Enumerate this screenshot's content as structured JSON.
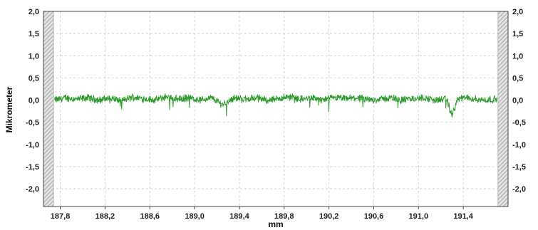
{
  "chart_data": {
    "type": "line",
    "title": "",
    "xlabel": "mm",
    "ylabel": "Mikrometer",
    "xlim": [
      187.65,
      191.8
    ],
    "ylim": [
      -2.4,
      2.0
    ],
    "x_ticks": [
      187.8,
      188.2,
      188.6,
      189.0,
      189.4,
      189.8,
      190.2,
      190.6,
      191.0,
      191.4
    ],
    "x_tick_labels": [
      "187,8",
      "188,2",
      "188,6",
      "189,0",
      "189,4",
      "189,8",
      "190,2",
      "190,6",
      "191,0",
      "191,4"
    ],
    "y_ticks": [
      2.0,
      1.5,
      1.0,
      0.5,
      0.0,
      -0.5,
      -1.0,
      -1.5,
      -2.0
    ],
    "y_tick_labels": [
      "2,0",
      "1,5",
      "1,0",
      "0,5",
      "0,0",
      "-0,5",
      "-1,0",
      "-1,5",
      "-2,0"
    ],
    "right_y_tick_labels": [
      "2,0",
      "1,5",
      "1,0",
      "0,5",
      "0,0",
      "-0,5",
      "-1,0",
      "-1,5",
      "-2,0"
    ],
    "grid": true,
    "excluded_ranges": [
      [
        187.65,
        187.74
      ],
      [
        191.71,
        191.8
      ]
    ],
    "series": [
      {
        "color": "#2e9b2e",
        "x": [
          187.75,
          187.85,
          187.95,
          188.05,
          188.15,
          188.25,
          188.35,
          188.45,
          188.55,
          188.65,
          188.75,
          188.85,
          188.95,
          189.05,
          189.15,
          189.25,
          189.35,
          189.45,
          189.55,
          189.65,
          189.75,
          189.85,
          189.95,
          190.05,
          190.15,
          190.25,
          190.35,
          190.45,
          190.55,
          190.65,
          190.75,
          190.85,
          190.95,
          191.05,
          191.15,
          191.25,
          191.3,
          191.35,
          191.45,
          191.55,
          191.7
        ],
        "y": [
          0.0,
          0.05,
          0.02,
          0.05,
          0.0,
          0.05,
          -0.02,
          0.07,
          0.03,
          0.0,
          0.08,
          0.02,
          0.05,
          0.0,
          0.05,
          -0.1,
          0.05,
          0.02,
          0.05,
          0.0,
          0.03,
          0.08,
          0.02,
          0.05,
          0.0,
          0.05,
          0.03,
          0.05,
          0.0,
          0.02,
          0.05,
          0.0,
          0.03,
          0.05,
          0.0,
          0.02,
          -0.35,
          0.03,
          0.05,
          0.0,
          0.02
        ]
      }
    ],
    "colors": {
      "background": "#ffffff",
      "plot_background": "#ffffff",
      "grid": "#d4d4d4",
      "frame": "#444444",
      "hatch": "#9a9a9a"
    }
  }
}
